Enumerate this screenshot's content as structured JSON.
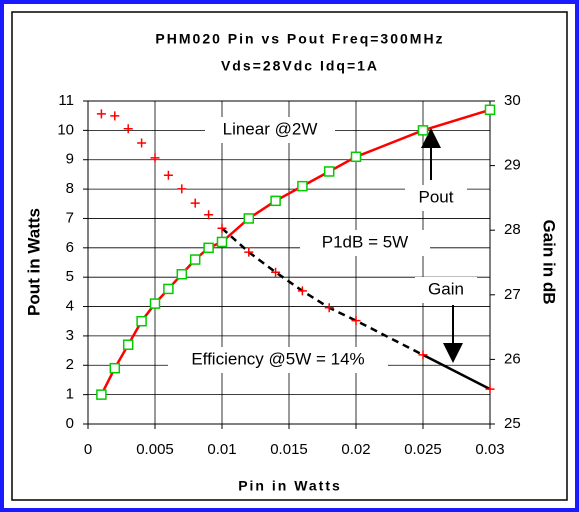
{
  "chart_data": {
    "type": "line",
    "title": "PHM020 Pin vs Pout Freq=300MHz",
    "subtitle": "Vds=28Vdc Idq=1A",
    "x_label": "Pin in Watts",
    "y_label": "Pout in Watts",
    "y2_label": "Gain in dB",
    "x": [
      0.001,
      0.002,
      0.003,
      0.004,
      0.005,
      0.006,
      0.007,
      0.008,
      0.009,
      0.01,
      0.012,
      0.014,
      0.016,
      0.018,
      0.02,
      0.025,
      0.03
    ],
    "series": [
      {
        "name": "Pout",
        "color": "#ff0000",
        "marker_color": "#00cc00",
        "marker": "square",
        "values": [
          1.0,
          1.9,
          2.7,
          3.5,
          4.1,
          4.6,
          5.1,
          5.6,
          6.0,
          6.2,
          7.0,
          7.6,
          8.1,
          8.6,
          9.1,
          10.0,
          10.7
        ]
      },
      {
        "name": "Gain",
        "axis": "y2",
        "color": "#000000",
        "marker_color": "#ff0000",
        "marker": "plus",
        "values": [
          29.8,
          29.77,
          29.57,
          29.35,
          29.12,
          28.85,
          28.64,
          28.42,
          28.24,
          28.03,
          27.66,
          27.35,
          27.06,
          26.8,
          26.6,
          26.07,
          25.54
        ]
      }
    ],
    "annotations": [
      "Linear @2W",
      "P1dB = 5W",
      "Efficiency @5W = 14%"
    ],
    "xlim": [
      0,
      0.03
    ],
    "xticks": [
      0,
      0.005,
      0.01,
      0.015,
      0.02,
      0.025,
      0.03
    ],
    "ylim": [
      0,
      11
    ],
    "yticks": [
      0,
      1,
      2,
      3,
      4,
      5,
      6,
      7,
      8,
      9,
      10,
      11
    ],
    "y2lim": [
      25,
      30
    ],
    "y2ticks": [
      25,
      26,
      27,
      28,
      29,
      30
    ],
    "grid": true
  }
}
